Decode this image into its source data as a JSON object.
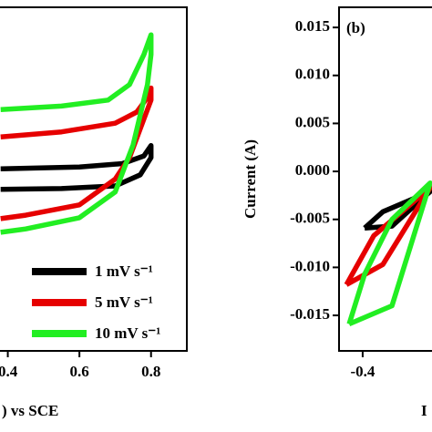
{
  "chart_data": [
    {
      "type": "line",
      "x_label": ") vs SCE",
      "xlim": [
        0.2,
        0.9
      ],
      "xticks": [
        0.4,
        0.6,
        0.8
      ],
      "ylim": [
        -0.02,
        0.02
      ],
      "legend": "lower-right",
      "series": [
        {
          "name": "1 mV s⁻¹",
          "color": "#000000",
          "x": [
            0.38,
            0.6,
            0.72,
            0.78,
            0.8,
            0.8,
            0.77,
            0.7,
            0.55,
            0.38
          ],
          "values": [
            0.0012,
            0.0014,
            0.0018,
            0.0027,
            0.0039,
            0.0025,
            0.0005,
            -0.0008,
            -0.0011,
            -0.0012
          ]
        },
        {
          "name": "5 mV s⁻¹",
          "color": "#e60000",
          "x": [
            0.38,
            0.55,
            0.7,
            0.76,
            0.79,
            0.8,
            0.8,
            0.78,
            0.74,
            0.7,
            0.6,
            0.45,
            0.38
          ],
          "values": [
            0.0049,
            0.0055,
            0.0065,
            0.0078,
            0.0095,
            0.0106,
            0.0092,
            0.007,
            0.0025,
            0.0,
            -0.003,
            -0.0042,
            -0.0046
          ]
        },
        {
          "name": "10 mV s⁻¹",
          "color": "#22ee22",
          "x": [
            0.38,
            0.55,
            0.68,
            0.74,
            0.78,
            0.8,
            0.8,
            0.79,
            0.75,
            0.7,
            0.6,
            0.45,
            0.38
          ],
          "values": [
            0.0081,
            0.0085,
            0.0092,
            0.011,
            0.0145,
            0.0168,
            0.0145,
            0.011,
            0.004,
            -0.0015,
            -0.0045,
            -0.0058,
            -0.0062
          ]
        }
      ]
    },
    {
      "type": "line",
      "annotation": "(b)",
      "y_label": "Current (A)",
      "x_label": "I",
      "xlim": [
        -0.47,
        -0.2
      ],
      "xticks": [
        -0.4
      ],
      "ylim": [
        -0.0187,
        0.0171
      ],
      "yticks": [
        {
          "value": 0.015,
          "label": "0.015"
        },
        {
          "value": 0.01,
          "label": "0.010"
        },
        {
          "value": 0.005,
          "label": "0.005"
        },
        {
          "value": 0,
          "label": "0.000"
        },
        {
          "value": -0.005,
          "label": "-0.005"
        },
        {
          "value": -0.01,
          "label": "-0.010"
        },
        {
          "value": -0.015,
          "label": "-0.015"
        }
      ],
      "series": [
        {
          "color": "#000000",
          "x": [
            -0.394,
            -0.34,
            -0.2,
            -0.313,
            -0.394
          ],
          "values": [
            -0.0059,
            -0.0042,
            -0.0021,
            -0.0057,
            -0.0059
          ]
        },
        {
          "color": "#e60000",
          "x": [
            -0.448,
            -0.367,
            -0.2,
            -0.34,
            -0.448
          ],
          "values": [
            -0.0118,
            -0.0067,
            -0.0017,
            -0.0097,
            -0.0118
          ]
        },
        {
          "color": "#22ee22",
          "x": [
            -0.44,
            -0.394,
            -0.313,
            -0.2,
            -0.313,
            -0.44
          ],
          "values": [
            -0.0159,
            -0.0107,
            -0.005,
            -0.0012,
            -0.014,
            -0.0159
          ]
        }
      ]
    }
  ]
}
